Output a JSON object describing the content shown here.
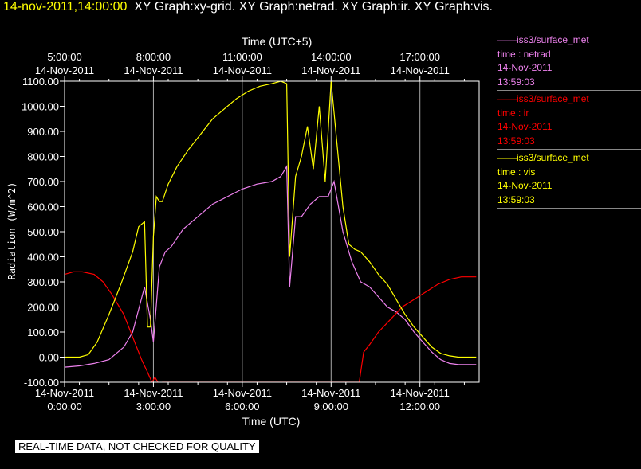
{
  "header": {
    "timestamp": "14-nov-2011,14:00:00",
    "graphs": "XY Graph:xy-grid.  XY Graph:netrad.  XY Graph:ir.  XY Graph:vis."
  },
  "disclaimer": "REAL-TIME DATA, NOT CHECKED FOR QUALITY",
  "legend": [
    {
      "line": "iss3/surface_met",
      "var": "time : netrad",
      "date": "14-Nov-2011",
      "time": "13:59:03",
      "color": "#ee82ee"
    },
    {
      "line": "iss3/surface_met",
      "var": "time : ir",
      "date": "14-Nov-2011",
      "time": "13:59:03",
      "color": "#ff0000"
    },
    {
      "line": "iss3/surface_met",
      "var": "time : vis",
      "date": "14-Nov-2011",
      "time": "13:59:03",
      "color": "#ffff00"
    }
  ],
  "chart_data": {
    "type": "line",
    "xlabel": "Time (UTC)",
    "x2label": "Time (UTC+5)",
    "ylabel": "Radiation (W/m^2)",
    "xlim": [
      0,
      14.0
    ],
    "ylim": [
      -100,
      1100
    ],
    "grid": true,
    "yticks": [
      -100,
      0,
      100,
      200,
      300,
      400,
      500,
      600,
      700,
      800,
      900,
      1000,
      1100
    ],
    "ytick_labels": [
      "-100.00",
      "0.00",
      "100.00",
      "200.00",
      "300.00",
      "400.00",
      "500.00",
      "600.00",
      "700.00",
      "800.00",
      "900.00",
      "1000.00",
      "1100.00"
    ],
    "xticks": [
      {
        "x": 0,
        "date": "14-Nov-2011",
        "time": "0:00:00"
      },
      {
        "x": 3,
        "date": "14-Nov-2011",
        "time": "3:00:00"
      },
      {
        "x": 6,
        "date": "14-Nov-2011",
        "time": "6:00:00"
      },
      {
        "x": 9,
        "date": "14-Nov-2011",
        "time": "9:00:00"
      },
      {
        "x": 12,
        "date": "14-Nov-2011",
        "time": "12:00:00"
      }
    ],
    "x2ticks": [
      {
        "x": 0,
        "time": "5:00:00",
        "date": "14-Nov-2011"
      },
      {
        "x": 3,
        "time": "8:00:00",
        "date": "14-Nov-2011"
      },
      {
        "x": 6,
        "time": "11:00:00",
        "date": "14-Nov-2011"
      },
      {
        "x": 9,
        "time": "14:00:00",
        "date": "14-Nov-2011"
      },
      {
        "x": 12,
        "time": "17:00:00",
        "date": "14-Nov-2011"
      }
    ],
    "series": [
      {
        "name": "netrad",
        "color": "#ee82ee",
        "x": [
          0,
          0.5,
          1,
          1.5,
          2,
          2.3,
          2.5,
          2.7,
          2.9,
          3.0,
          3.2,
          3.4,
          3.6,
          4,
          4.5,
          5,
          5.5,
          6,
          6.5,
          7,
          7.3,
          7.5,
          7.6,
          7.8,
          8.0,
          8.3,
          8.6,
          8.9,
          9.1,
          9.4,
          9.7,
          10,
          10.3,
          10.6,
          10.9,
          11.2,
          11.5,
          11.8,
          12.1,
          12.4,
          12.7,
          13.0,
          13.3,
          13.6,
          13.9
        ],
        "y": [
          -40,
          -35,
          -25,
          -10,
          40,
          100,
          190,
          280,
          150,
          60,
          360,
          420,
          440,
          510,
          560,
          610,
          640,
          670,
          690,
          700,
          720,
          760,
          280,
          560,
          560,
          610,
          640,
          640,
          700,
          500,
          380,
          300,
          280,
          240,
          200,
          180,
          150,
          100,
          60,
          20,
          -10,
          -25,
          -30,
          -30,
          -30
        ]
      },
      {
        "name": "ir",
        "color": "#ff0000",
        "x": [
          0,
          0.3,
          0.6,
          1.0,
          1.3,
          1.6,
          2.0,
          2.3,
          2.6,
          2.8,
          2.95,
          3.05,
          3.2,
          3.3,
          9.95,
          10.1,
          10.3,
          10.6,
          11.0,
          11.4,
          11.8,
          12.2,
          12.6,
          13.0,
          13.4,
          13.9
        ],
        "y": [
          330,
          340,
          340,
          330,
          300,
          250,
          170,
          80,
          -10,
          -60,
          -100,
          -80,
          -110,
          -100,
          -100,
          20,
          50,
          100,
          150,
          200,
          230,
          260,
          290,
          310,
          320,
          320
        ]
      },
      {
        "name": "vis",
        "color": "#ffff00",
        "x": [
          0,
          0.5,
          0.8,
          1.1,
          1.5,
          1.9,
          2.3,
          2.5,
          2.7,
          2.8,
          2.9,
          3.0,
          3.1,
          3.2,
          3.3,
          3.5,
          3.8,
          4.2,
          4.6,
          5.0,
          5.4,
          5.8,
          6.2,
          6.6,
          7.0,
          7.3,
          7.5,
          7.6,
          7.8,
          8.0,
          8.2,
          8.4,
          8.6,
          8.8,
          9.0,
          9.2,
          9.4,
          9.6,
          9.8,
          10.0,
          10.3,
          10.6,
          10.9,
          11.2,
          11.5,
          11.8,
          12.1,
          12.4,
          12.7,
          13.0,
          13.3,
          13.6,
          13.9
        ],
        "y": [
          0,
          0,
          10,
          60,
          170,
          290,
          420,
          520,
          540,
          120,
          120,
          480,
          640,
          620,
          620,
          690,
          760,
          830,
          890,
          950,
          990,
          1030,
          1060,
          1080,
          1090,
          1100,
          1090,
          400,
          720,
          800,
          920,
          750,
          1000,
          700,
          1100,
          850,
          600,
          450,
          430,
          420,
          380,
          330,
          290,
          230,
          170,
          120,
          80,
          40,
          15,
          5,
          0,
          0,
          0
        ]
      }
    ]
  }
}
